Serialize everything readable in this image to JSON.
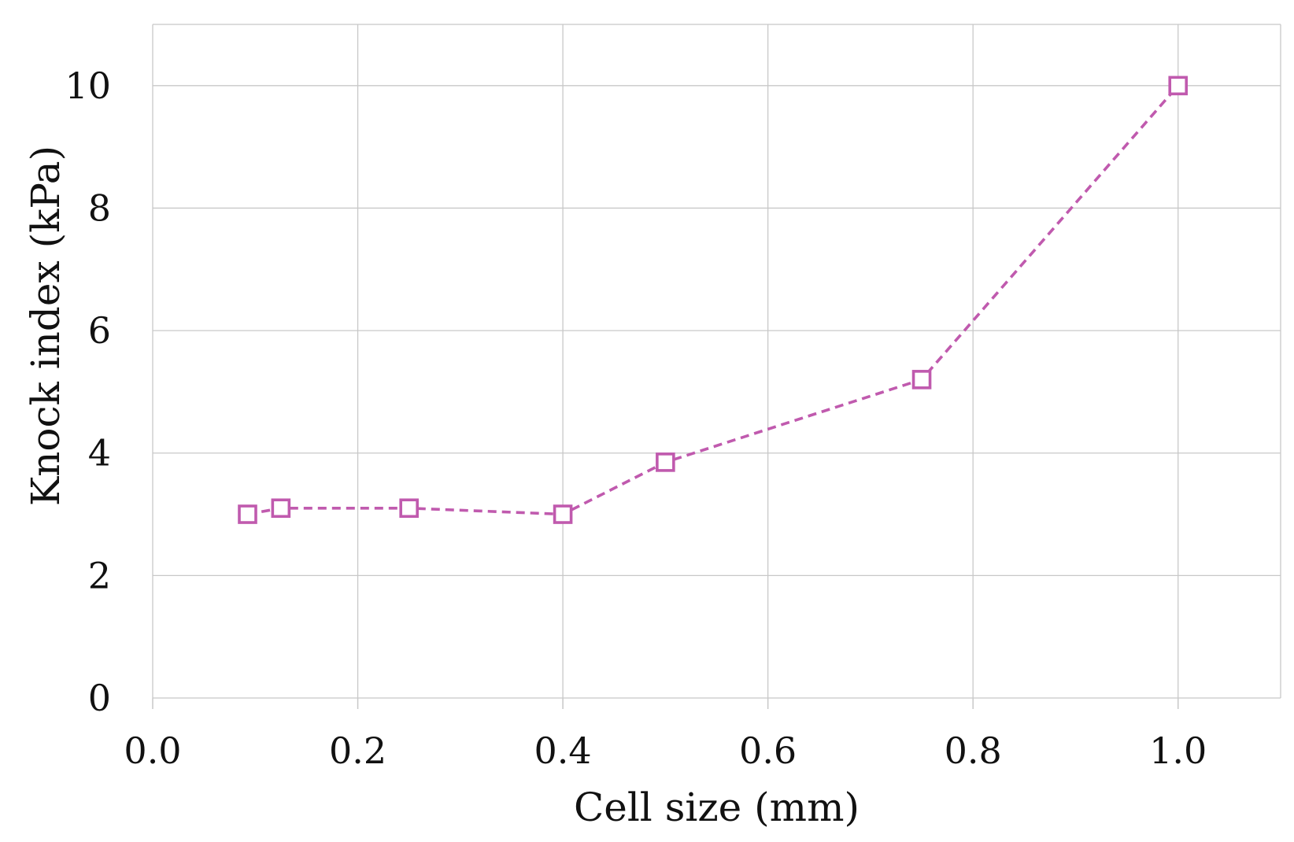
{
  "chart_data": {
    "type": "line",
    "title": "",
    "xlabel": "Cell size (mm)",
    "ylabel": "Knock index (kPa)",
    "xlim": [
      0.0,
      1.1
    ],
    "ylim": [
      0,
      11
    ],
    "x_ticks": [
      0.0,
      0.2,
      0.4,
      0.6,
      0.8,
      1.0
    ],
    "x_tick_labels": [
      "0.0",
      "0.2",
      "0.4",
      "0.6",
      "0.8",
      "1.0"
    ],
    "y_ticks": [
      0,
      2,
      4,
      6,
      8,
      10
    ],
    "y_tick_labels": [
      "0",
      "2",
      "4",
      "6",
      "8",
      "10"
    ],
    "grid": true,
    "legend": "none",
    "series": [
      {
        "name": "Knock index",
        "color": "#c05aae",
        "line_style": "dashed",
        "marker": "open-square",
        "x": [
          0.0925,
          0.125,
          0.25,
          0.4,
          0.5,
          0.75,
          1.0
        ],
        "y": [
          3.0,
          3.1,
          3.1,
          3.0,
          3.85,
          5.2,
          10.0
        ]
      }
    ]
  }
}
